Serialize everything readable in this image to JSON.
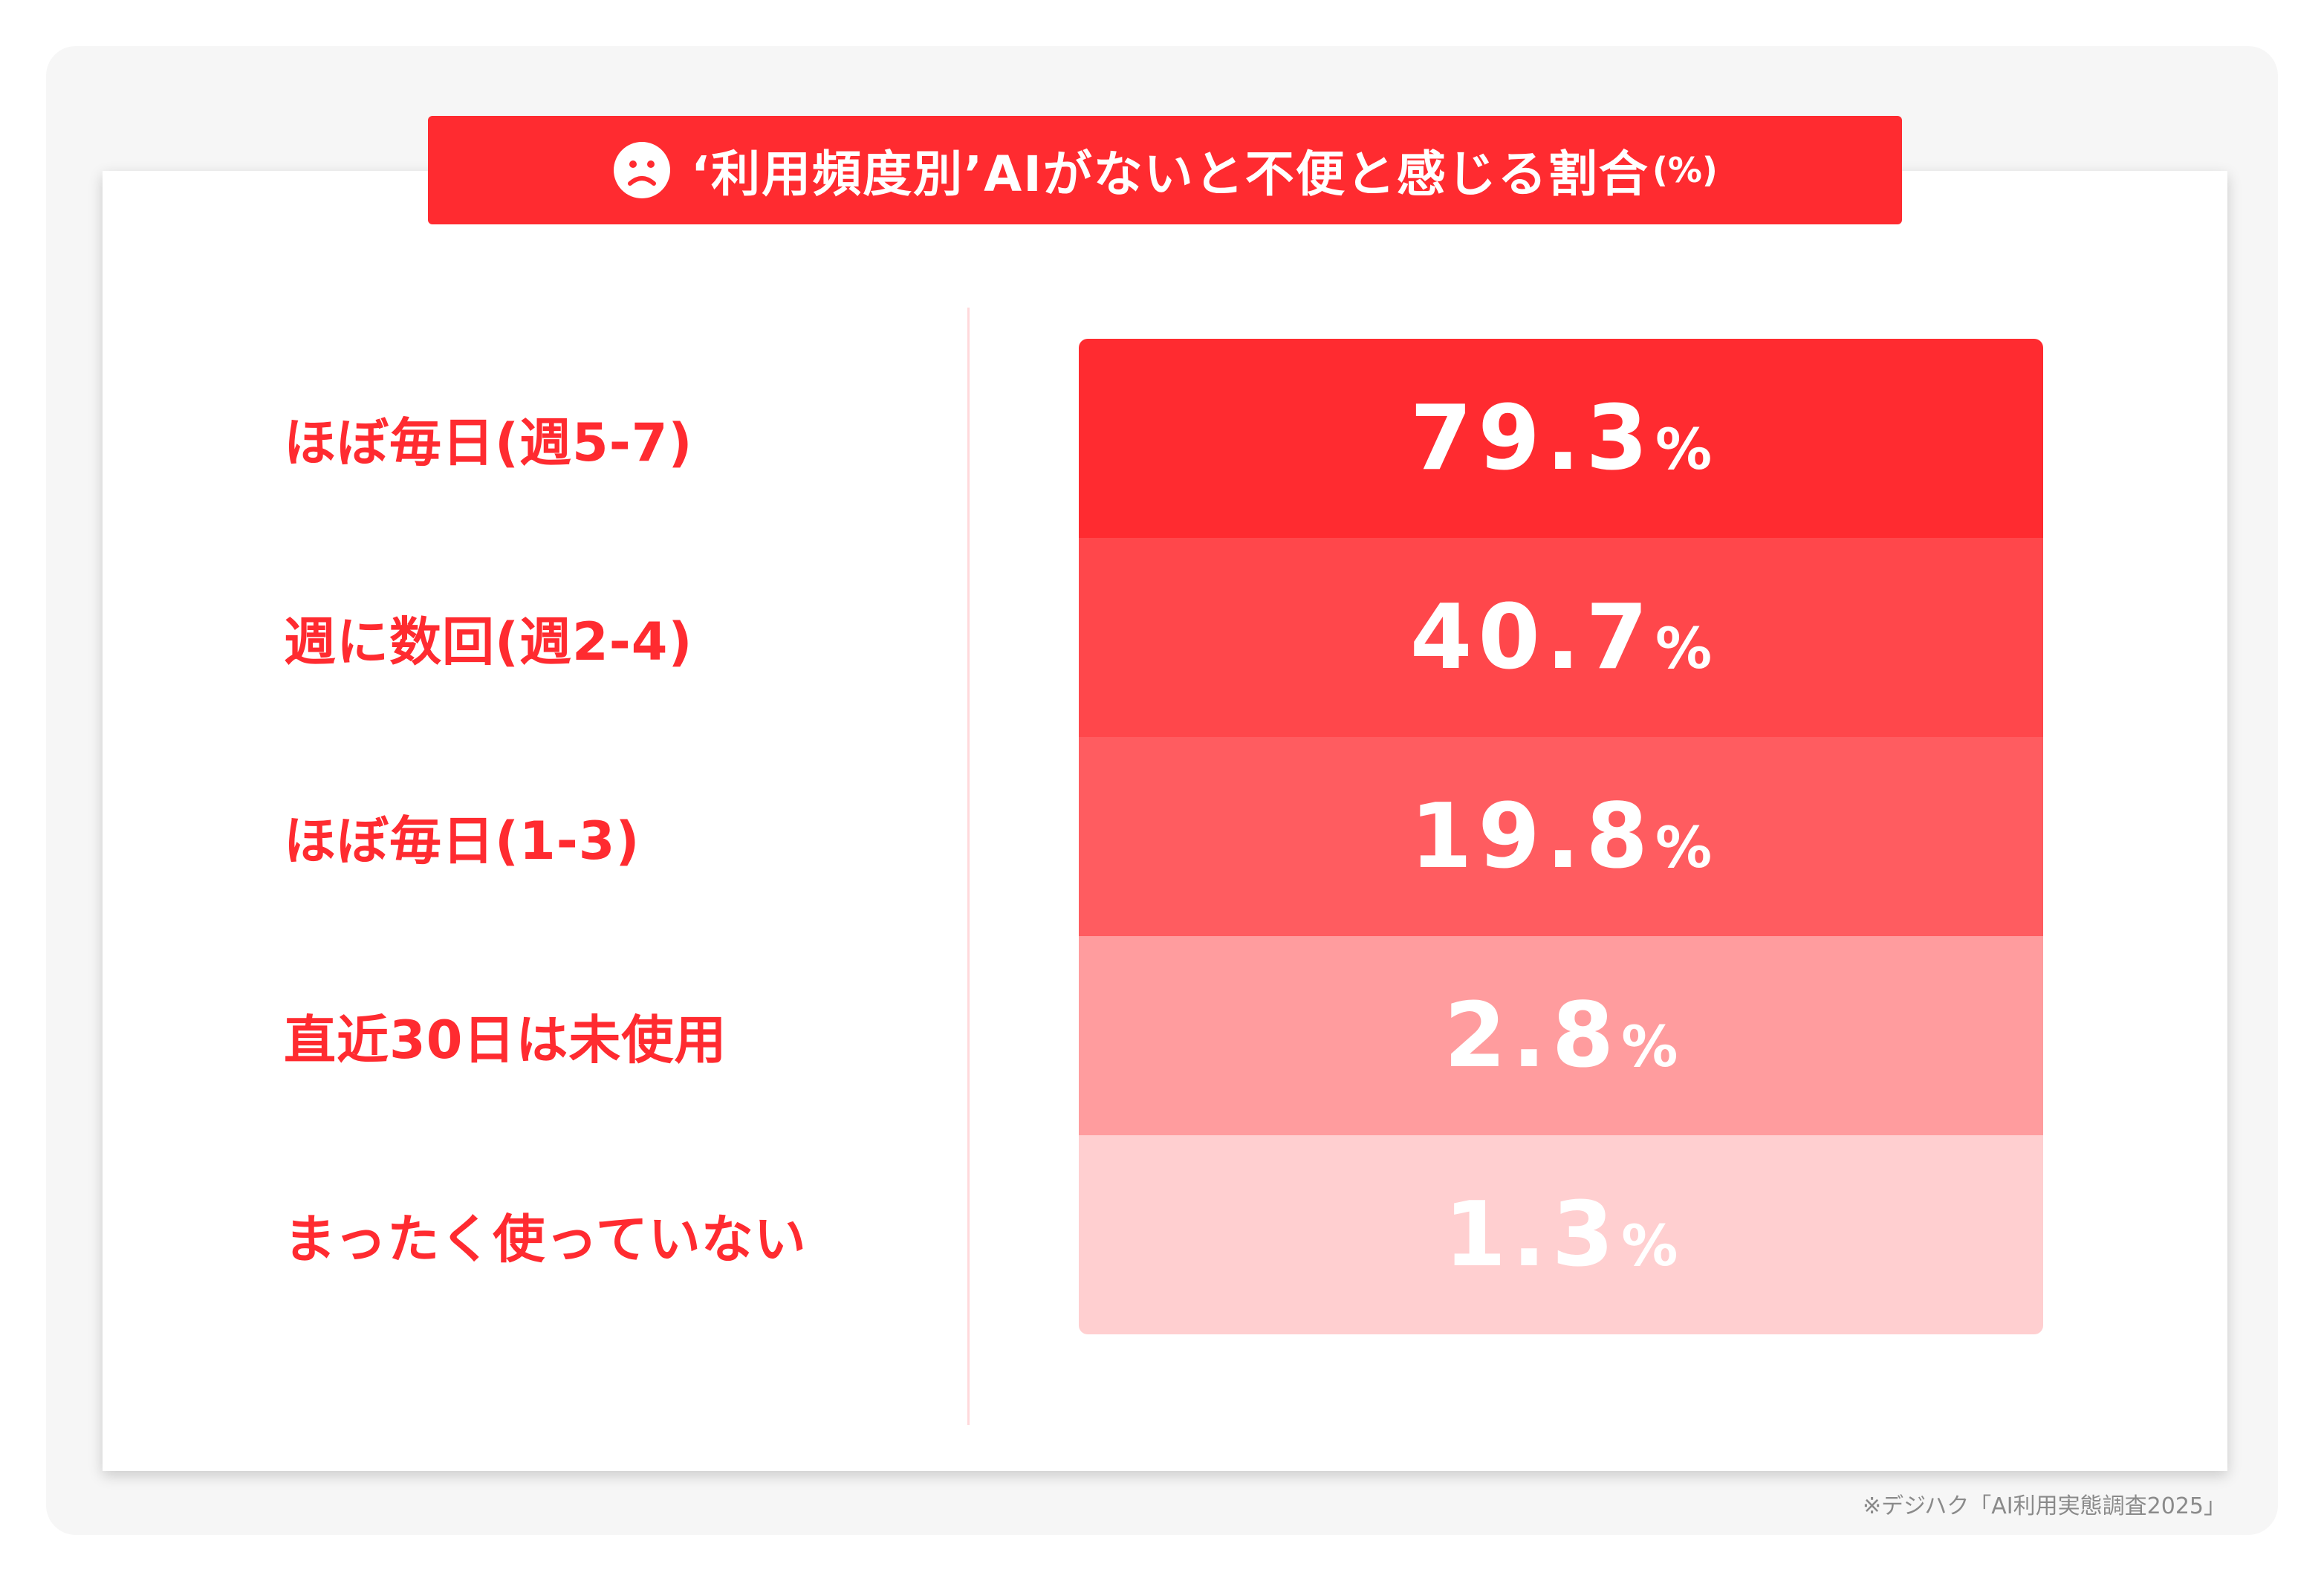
{
  "title": {
    "text": "‘利用頻度別’AIがないと不便と感じる割合",
    "unit": "(%)",
    "icon": "sad-face-icon"
  },
  "source": "※デジハク「AI利用実態調査2025」",
  "colors": {
    "accent": "#ff2b30",
    "bars": [
      "#ff2b30",
      "#ff474b",
      "#ff5c60",
      "#ff9c9e",
      "#ffcfd0"
    ]
  },
  "chart_data": {
    "type": "bar",
    "title": "‘利用頻度別’AIがないと不便と感じる割合(%)",
    "categories": [
      "ほぼ毎日(週5-7)",
      "週に数回(週2-4)",
      "ほぼ毎日(1-3)",
      "直近30日は未使用",
      "まったく使っていない"
    ],
    "values": [
      79.3,
      40.7,
      19.8,
      2.8,
      1.3
    ],
    "value_labels": [
      "79.3",
      "40.7",
      "19.8",
      "2.8",
      "1.3"
    ],
    "value_suffix": "%"
  }
}
